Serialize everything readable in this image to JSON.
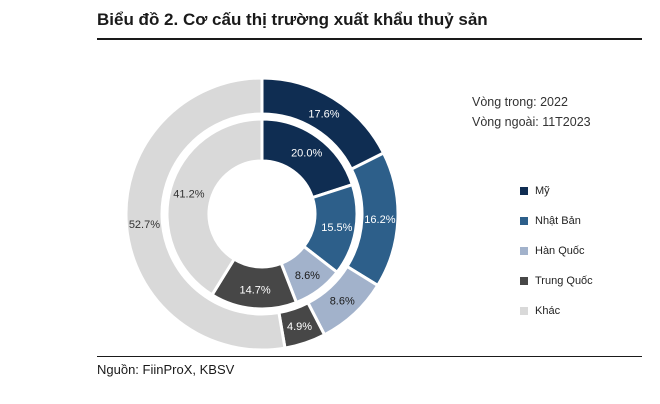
{
  "title": "Biểu đồ 2. Cơ cấu thị trường xuất khẩu thuỷ sản",
  "source": "Nguồn: FiinProX, KBSV",
  "notes": {
    "inner": "Vòng trong: 2022",
    "outer": "Vòng ngoài: 11T2023"
  },
  "chart_data": {
    "type": "pie",
    "variant": "double-donut",
    "start_angle": "12 o'clock, clockwise",
    "categories": [
      "Mỹ",
      "Nhật Bản",
      "Hàn Quốc",
      "Trung Quốc",
      "Khác"
    ],
    "colors": [
      "#0f2d52",
      "#2d5f8a",
      "#a2b2cb",
      "#474747",
      "#d9d9d9"
    ],
    "series": [
      {
        "ring": "outer",
        "values": [
          17.6,
          16.2,
          8.6,
          4.9,
          52.7
        ],
        "labels": [
          "17.6%",
          "16.2%",
          "8.6%",
          "4.9%",
          "52.7%"
        ]
      },
      {
        "ring": "inner",
        "values": [
          20.0,
          15.5,
          8.6,
          14.7,
          41.2
        ],
        "labels": [
          "20.0%",
          "15.5%",
          "8.6%",
          "14.7%",
          "41.2%"
        ]
      }
    ],
    "legend_position": "right"
  }
}
